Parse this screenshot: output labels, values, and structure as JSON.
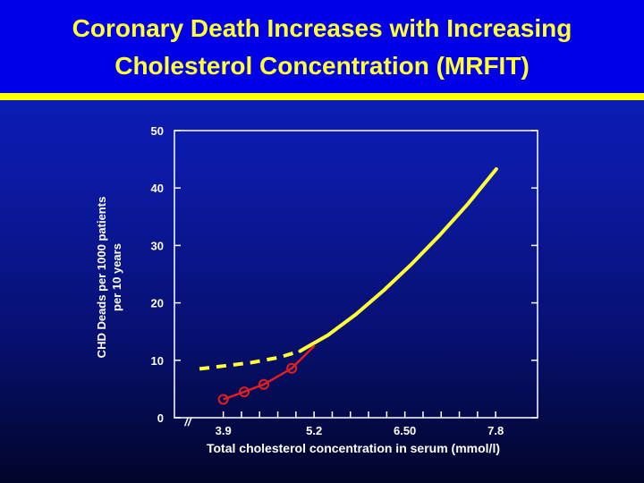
{
  "title": {
    "line1": "Coronary Death Increases with Increasing",
    "line2": "Cholesterol Concentration (MRFIT)"
  },
  "colors": {
    "title_text": "#ffff33",
    "rule": "#ffff00",
    "background_top": "#0a1fc8",
    "background_bottom": "#02052a",
    "fitted_curve": "#ffff33",
    "observed_points": "#e02020",
    "axis_text": "#ffffff"
  },
  "chart_data": {
    "type": "line",
    "ylabel_line1": "CHD Deads per 1000 patients",
    "ylabel_line2": "per 10 years",
    "xlabel": "Total cholesterol concentration in serum (mmol/l)",
    "ylim": [
      0,
      50
    ],
    "yticks": [
      0,
      10,
      20,
      30,
      40,
      50
    ],
    "xlim": [
      3.2,
      8.4
    ],
    "xtick_labels": [
      {
        "x": 3.9,
        "label": "3.9"
      },
      {
        "x": 5.2,
        "label": "5.2"
      },
      {
        "x": 6.5,
        "label": "6.50"
      },
      {
        "x": 7.8,
        "label": "7.8"
      }
    ],
    "axis_break_symbol": "//",
    "grid": false,
    "series": [
      {
        "style": "dashed-extrapolated",
        "x": [
          3.56,
          3.9,
          4.3,
          4.7,
          5.0
        ],
        "values": [
          8.5,
          9.0,
          9.6,
          10.5,
          11.6
        ]
      },
      {
        "style": "solid-fitted",
        "x": [
          5.0,
          5.4,
          5.8,
          6.2,
          6.6,
          7.0,
          7.4,
          7.81
        ],
        "values": [
          11.6,
          14.4,
          18.0,
          22.2,
          26.8,
          31.8,
          37.2,
          43.3
        ]
      },
      {
        "style": "observed-points",
        "x": [
          3.9,
          4.2,
          4.48,
          4.88,
          5.21
        ],
        "values": [
          3.2,
          4.5,
          5.8,
          8.6,
          12.6
        ]
      }
    ]
  }
}
